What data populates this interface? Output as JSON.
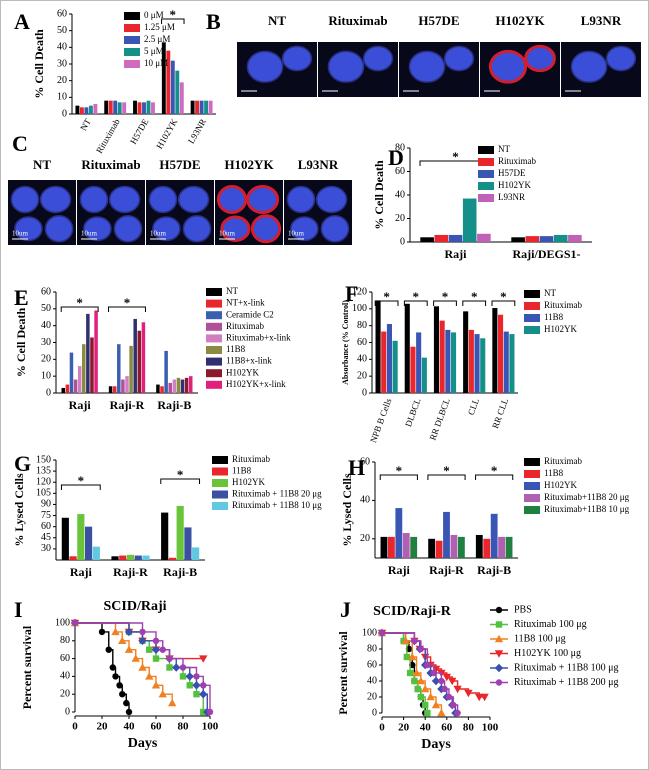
{
  "chart_data": [
    {
      "panel": "A",
      "type": "bar",
      "ylabel": "% Cell Death",
      "categories": [
        "NT",
        "Rituximab",
        "H57DE",
        "H102YK",
        "L93NR"
      ],
      "series": [
        {
          "name": "0 μM",
          "color": "#000000",
          "values": [
            5,
            8,
            8,
            43,
            8
          ]
        },
        {
          "name": "1.25 μM",
          "color": "#e8262b",
          "values": [
            4,
            8,
            7,
            38,
            8
          ]
        },
        {
          "name": "2.5 μM",
          "color": "#3a56b4",
          "values": [
            4,
            8,
            7,
            32,
            8
          ]
        },
        {
          "name": "5 μM",
          "color": "#148f8a",
          "values": [
            5,
            7,
            8,
            26,
            8
          ]
        },
        {
          "name": "10 μM",
          "color": "#d06ac0",
          "values": [
            6,
            7,
            7,
            19,
            8
          ]
        }
      ],
      "ylim": [
        0,
        60
      ],
      "yticks": [
        0,
        10,
        20,
        30,
        40,
        50,
        60
      ],
      "annotations": [
        "*"
      ]
    },
    {
      "panel": "D",
      "type": "bar",
      "ylabel": "% Cell Death",
      "categories": [
        "Raji",
        "Raji/DEGS1-"
      ],
      "series": [
        {
          "name": "NT",
          "color": "#000000",
          "values": [
            4,
            4
          ]
        },
        {
          "name": "Rituximab",
          "color": "#e8262b",
          "values": [
            6,
            5
          ]
        },
        {
          "name": "H57DE",
          "color": "#3a56b4",
          "values": [
            6,
            5
          ]
        },
        {
          "name": "H102YK",
          "color": "#148f8a",
          "values": [
            37,
            6
          ]
        },
        {
          "name": "L93NR",
          "color": "#c060b8",
          "values": [
            7,
            6
          ]
        }
      ],
      "ylim": [
        0,
        80
      ],
      "yticks": [
        0,
        20,
        40,
        60,
        80
      ],
      "annotations": [
        "*"
      ]
    },
    {
      "panel": "E",
      "type": "bar",
      "ylabel": "% Cell Death",
      "categories": [
        "Raji",
        "Raji-R",
        "Raji-B"
      ],
      "series": [
        {
          "name": "NT",
          "color": "#000000",
          "values": [
            3,
            4,
            5
          ]
        },
        {
          "name": "NT+x-link",
          "color": "#e8262b",
          "values": [
            5,
            4,
            4
          ]
        },
        {
          "name": "Ceramide C2",
          "color": "#3a5fb0",
          "values": [
            24,
            29,
            25
          ]
        },
        {
          "name": "Rituximab",
          "color": "#b0509a",
          "values": [
            8,
            8,
            6
          ]
        },
        {
          "name": "Rituximab+x-link",
          "color": "#d080c0",
          "values": [
            16,
            10,
            8
          ]
        },
        {
          "name": "11B8",
          "color": "#8a8a40",
          "values": [
            29,
            28,
            9
          ]
        },
        {
          "name": "11B8+x-link",
          "color": "#303070",
          "values": [
            47,
            44,
            8
          ]
        },
        {
          "name": "H102YK",
          "color": "#8b1a2a",
          "values": [
            33,
            37,
            9
          ]
        },
        {
          "name": "H102YK+x-link",
          "color": "#e0207a",
          "values": [
            49,
            42,
            10
          ]
        }
      ],
      "ylim": [
        0,
        60
      ],
      "yticks": [
        0,
        10,
        20,
        30,
        40,
        50,
        60
      ],
      "annotations": [
        "*",
        "*"
      ]
    },
    {
      "panel": "F",
      "type": "bar",
      "ylabel": "Absorbance (% Control)",
      "categories": [
        "NPB B Cells",
        "DLBCL",
        "RR DLBCL",
        "CLL",
        "RR CLL"
      ],
      "series": [
        {
          "name": "NT",
          "color": "#000000",
          "values": [
            110,
            106,
            103,
            97,
            101
          ]
        },
        {
          "name": "Rituximab",
          "color": "#e8262b",
          "values": [
            73,
            55,
            86,
            75,
            93
          ]
        },
        {
          "name": "11B8",
          "color": "#3a56b4",
          "values": [
            82,
            72,
            75,
            70,
            73
          ]
        },
        {
          "name": "H102YK",
          "color": "#148f8a",
          "values": [
            62,
            42,
            72,
            65,
            70
          ]
        }
      ],
      "ylim": [
        0,
        120
      ],
      "yticks": [
        0,
        20,
        40,
        60,
        80,
        100,
        120
      ],
      "annotations": [
        "*",
        "*",
        "*",
        "*",
        "*"
      ]
    },
    {
      "panel": "G",
      "type": "bar",
      "ylabel": "% Lysed Cells",
      "categories": [
        "Raji",
        "Raji-R",
        "Raji-B"
      ],
      "series": [
        {
          "name": "Rituximab",
          "color": "#000000",
          "values": [
            72,
            20,
            79
          ]
        },
        {
          "name": "11B8",
          "color": "#e8262b",
          "values": [
            20,
            21,
            18
          ]
        },
        {
          "name": "H102YK",
          "color": "#6ac43a",
          "values": [
            77,
            22,
            88
          ]
        },
        {
          "name": "Rituximab + 11B8 20 μg",
          "color": "#3a50a0",
          "values": [
            60,
            21,
            59
          ]
        },
        {
          "name": "Rituximab + 11B8 10 μg",
          "color": "#60c8e0",
          "values": [
            33,
            21,
            32
          ]
        }
      ],
      "ylim": [
        15,
        150
      ],
      "yticks": [
        30,
        45,
        60,
        75,
        90,
        105,
        120,
        135,
        150
      ],
      "annotations": [
        "*",
        "*"
      ]
    },
    {
      "panel": "H",
      "type": "bar",
      "ylabel": "% Lysed Cells",
      "categories": [
        "Raji",
        "Raji-R",
        "Raji-B"
      ],
      "series": [
        {
          "name": "Rituximab",
          "color": "#000000",
          "values": [
            21,
            20,
            22
          ]
        },
        {
          "name": "11B8",
          "color": "#e8262b",
          "values": [
            21,
            19,
            20
          ]
        },
        {
          "name": "H102YK",
          "color": "#3a56b4",
          "values": [
            36,
            34,
            33
          ]
        },
        {
          "name": "Rituximab+11B8 20 μg",
          "color": "#b060b0",
          "values": [
            23,
            22,
            21
          ]
        },
        {
          "name": "Rituximab+11B8 10 μg",
          "color": "#208040",
          "values": [
            21,
            21,
            21
          ]
        }
      ],
      "ylim": [
        10,
        60
      ],
      "yticks": [
        20,
        40,
        60
      ],
      "annotations": [
        "*",
        "*",
        "*"
      ]
    },
    {
      "panel": "I",
      "type": "survival",
      "title": "SCID/Raji",
      "xlabel": "Days",
      "ylabel": "Percent survival",
      "xlim": [
        0,
        100
      ],
      "xticks": [
        0,
        20,
        40,
        60,
        80,
        100
      ],
      "ylim": [
        0,
        100
      ],
      "yticks": [
        0,
        20,
        40,
        60,
        80,
        100
      ],
      "series": [
        {
          "color": "#000000",
          "marker": "circle",
          "x": [
            0,
            20,
            25,
            28,
            30,
            33,
            35,
            38,
            40
          ],
          "values": [
            100,
            90,
            70,
            50,
            40,
            30,
            20,
            10,
            0
          ]
        },
        {
          "color": "#55c040",
          "marker": "square",
          "x": [
            0,
            40,
            50,
            55,
            60,
            70,
            80,
            85,
            90,
            95
          ],
          "values": [
            100,
            90,
            80,
            70,
            60,
            50,
            40,
            30,
            20,
            0
          ]
        },
        {
          "color": "#f08020",
          "marker": "triangle",
          "x": [
            0,
            30,
            35,
            40,
            45,
            50,
            55,
            60,
            65,
            72
          ],
          "values": [
            100,
            90,
            80,
            70,
            60,
            50,
            40,
            30,
            20,
            10
          ]
        },
        {
          "color": "#e8262b",
          "marker": "tri-down",
          "x": [
            0,
            40,
            50,
            60,
            70,
            95
          ],
          "values": [
            100,
            90,
            80,
            70,
            60,
            60
          ]
        },
        {
          "color": "#3a50b0",
          "marker": "diamond",
          "x": [
            0,
            40,
            50,
            60,
            70,
            75,
            85,
            90,
            95,
            98
          ],
          "values": [
            100,
            90,
            80,
            70,
            60,
            50,
            40,
            30,
            20,
            0
          ]
        },
        {
          "color": "#a040b0",
          "marker": "circle",
          "x": [
            0,
            50,
            60,
            65,
            70,
            80,
            90,
            95,
            100
          ],
          "values": [
            100,
            90,
            80,
            70,
            60,
            50,
            40,
            30,
            0
          ]
        }
      ]
    },
    {
      "panel": "J",
      "type": "survival",
      "title": "SCID/Raji-R",
      "xlabel": "Days",
      "ylabel": "Percent survival",
      "xlim": [
        0,
        100
      ],
      "xticks": [
        0,
        20,
        40,
        60,
        80,
        100
      ],
      "ylim": [
        0,
        100
      ],
      "yticks": [
        0,
        20,
        40,
        60,
        80,
        100
      ],
      "series": [
        {
          "name": "PBS",
          "color": "#000000",
          "marker": "circle",
          "x": [
            0,
            20,
            25,
            28,
            30,
            33,
            36,
            38,
            40
          ],
          "values": [
            100,
            90,
            80,
            60,
            40,
            30,
            20,
            10,
            0
          ]
        },
        {
          "name": "Rituximab 100 μg",
          "color": "#55c040",
          "marker": "square",
          "x": [
            0,
            20,
            23,
            26,
            30,
            33,
            36,
            40,
            42
          ],
          "values": [
            100,
            90,
            70,
            50,
            40,
            30,
            20,
            10,
            0
          ]
        },
        {
          "name": "11B8 100 μg",
          "color": "#f08020",
          "marker": "triangle",
          "x": [
            0,
            22,
            28,
            32,
            36,
            40,
            45,
            50,
            55
          ],
          "values": [
            100,
            90,
            70,
            50,
            40,
            30,
            20,
            10,
            0
          ]
        },
        {
          "name": "H102YK 100 μg",
          "color": "#e8262b",
          "marker": "tri-down",
          "x": [
            0,
            30,
            35,
            40,
            45,
            50,
            55,
            60,
            65,
            70,
            80,
            90,
            95
          ],
          "values": [
            100,
            90,
            80,
            70,
            60,
            55,
            50,
            45,
            40,
            30,
            25,
            20,
            20
          ]
        },
        {
          "name": "Rituximab + 11B8 100 μg",
          "color": "#3a50b0",
          "marker": "diamond",
          "x": [
            0,
            30,
            35,
            40,
            45,
            50,
            55,
            60,
            65,
            68
          ],
          "values": [
            100,
            90,
            80,
            60,
            50,
            40,
            30,
            20,
            10,
            0
          ]
        },
        {
          "name": "Rituximab + 11B8 200 μg",
          "color": "#a040b0",
          "marker": "circle",
          "x": [
            0,
            30,
            36,
            42,
            48,
            55,
            58,
            62,
            66,
            70
          ],
          "values": [
            100,
            90,
            80,
            60,
            50,
            40,
            30,
            20,
            10,
            0
          ]
        }
      ]
    }
  ],
  "image_panels": [
    {
      "panel": "B",
      "labels": [
        "NT",
        "Rituximab",
        "H57DE",
        "H102YK",
        "L93NR"
      ]
    },
    {
      "panel": "C",
      "labels": [
        "NT",
        "Rituximab",
        "H57DE",
        "H102YK",
        "L93NR"
      ],
      "scale_label": "10um"
    }
  ]
}
